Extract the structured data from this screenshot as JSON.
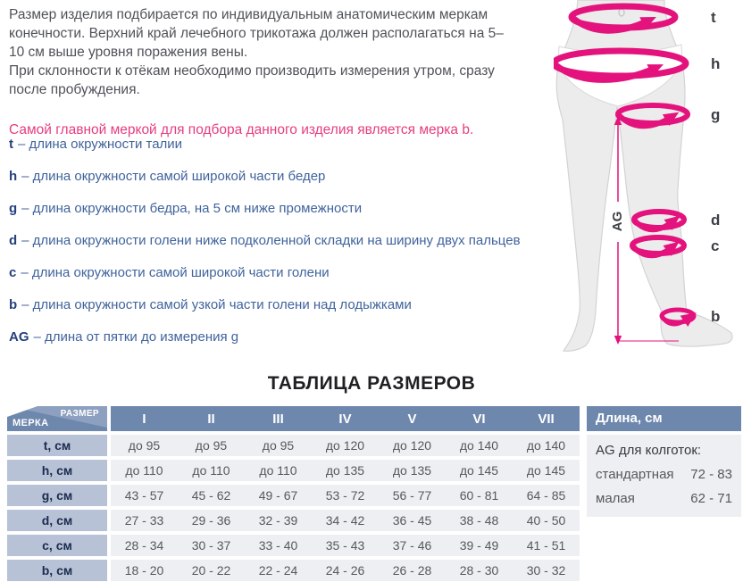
{
  "intro": {
    "p1": "Размер изделия подбирается по индивидуальным анатомическим меркам конечности. Верхний край лечебного трикотажа должен располагаться на 5–10 см выше уровня поражения вены.",
    "p2": "При склонности к отёкам необходимо производить измерения утром, сразу после пробуждения.",
    "highlight": "Самой главной меркой для подбора данного изделия является мерка b."
  },
  "measurements": [
    {
      "key": "t",
      "text": "– длина окружности талии"
    },
    {
      "key": "h",
      "text": "– длина окружности самой широкой части бедер"
    },
    {
      "key": "g",
      "text": "– длина окружности бедра, на 5 см ниже промежности"
    },
    {
      "key": "d",
      "text": "– длина окружности голени ниже подколенной складки на ширину двух пальцев"
    },
    {
      "key": "c",
      "text": "– длина окружности самой широкой части голени"
    },
    {
      "key": "b",
      "text": "– длина окружности самой узкой части голени над лодыжками"
    },
    {
      "key": "AG",
      "text": "– длина от пятки до измерения g"
    }
  ],
  "diagram": {
    "ring_labels": [
      "t",
      "h",
      "g",
      "d",
      "c",
      "b"
    ],
    "ag_label": "AG",
    "accent_color": "#e4127c"
  },
  "size_table": {
    "title": "ТАБЛИЦА РАЗМЕРОВ",
    "corner": {
      "top": "РАЗМЕР",
      "bottom": "МЕРКА"
    },
    "columns": [
      "I",
      "II",
      "III",
      "IV",
      "V",
      "VI",
      "VII"
    ],
    "rows": [
      {
        "label": "t, см",
        "values": [
          "до 95",
          "до 95",
          "до 95",
          "до 120",
          "до 120",
          "до 140",
          "до 140"
        ]
      },
      {
        "label": "h, см",
        "values": [
          "до 110",
          "до 110",
          "до 110",
          "до 135",
          "до 135",
          "до 145",
          "до 145"
        ]
      },
      {
        "label": "g, см",
        "values": [
          "43 - 57",
          "45 - 62",
          "49 - 67",
          "53 - 72",
          "56 - 77",
          "60 - 81",
          "64 - 85"
        ]
      },
      {
        "label": "d, см",
        "values": [
          "27 - 33",
          "29 - 36",
          "32 - 39",
          "34 - 42",
          "36 - 45",
          "38 - 48",
          "40 - 50"
        ]
      },
      {
        "label": "c, см",
        "values": [
          "28 - 34",
          "30 - 37",
          "33 - 40",
          "35 - 43",
          "37 - 46",
          "39 - 49",
          "41 - 51"
        ]
      },
      {
        "label": "b, см",
        "values": [
          "18 - 20",
          "20 - 22",
          "22 - 24",
          "24 - 26",
          "26 - 28",
          "28 - 30",
          "30 - 32"
        ]
      }
    ]
  },
  "length_panel": {
    "title": "Длина, см",
    "subtitle": "AG для колготок:",
    "rows": [
      {
        "label": "стандартная",
        "value": "72 - 83"
      },
      {
        "label": "малая",
        "value": "62 - 71"
      }
    ]
  },
  "colors": {
    "header_blue": "#6e87ad",
    "header_light_blue": "#8da0c0",
    "label_cell_blue": "#b7c2d7",
    "data_cell_gray": "#edeff3",
    "highlight_pink": "#e63d80",
    "diagram_pink": "#e4127c",
    "list_blue": "#40639d"
  }
}
